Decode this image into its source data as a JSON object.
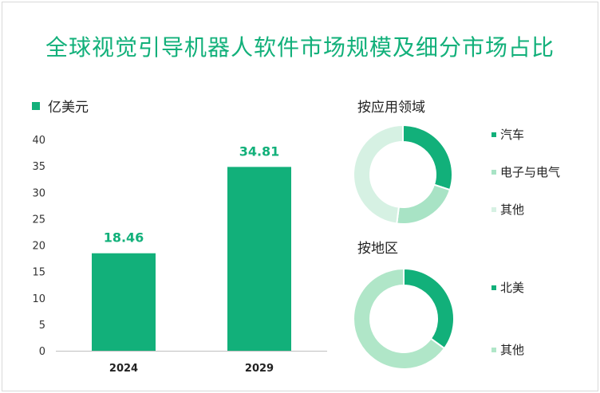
{
  "title": "全球视觉引导机器人软件市场规模及细分市场占比",
  "chart_data": [
    {
      "type": "bar",
      "unit_label": "亿美元",
      "categories": [
        "2024",
        "2029"
      ],
      "values": [
        18.46,
        34.81
      ],
      "value_labels": [
        "18.46",
        "34.81"
      ],
      "yticks": [
        "0",
        "5",
        "10",
        "15",
        "20",
        "25",
        "30",
        "35",
        "40"
      ],
      "ylim": [
        0,
        40
      ],
      "color": "#12b07a"
    },
    {
      "type": "pie",
      "title": "按应用领域",
      "labels": [
        "汽车",
        "电子与电气",
        "其他"
      ],
      "values": [
        30,
        22,
        48
      ],
      "colors": [
        "#12b07a",
        "#a8e3c5",
        "#d6f1e3"
      ]
    },
    {
      "type": "pie",
      "title": "按地区",
      "labels": [
        "北美",
        "其他"
      ],
      "values": [
        35,
        65
      ],
      "colors": [
        "#12b07a",
        "#b0e6c8"
      ]
    }
  ]
}
